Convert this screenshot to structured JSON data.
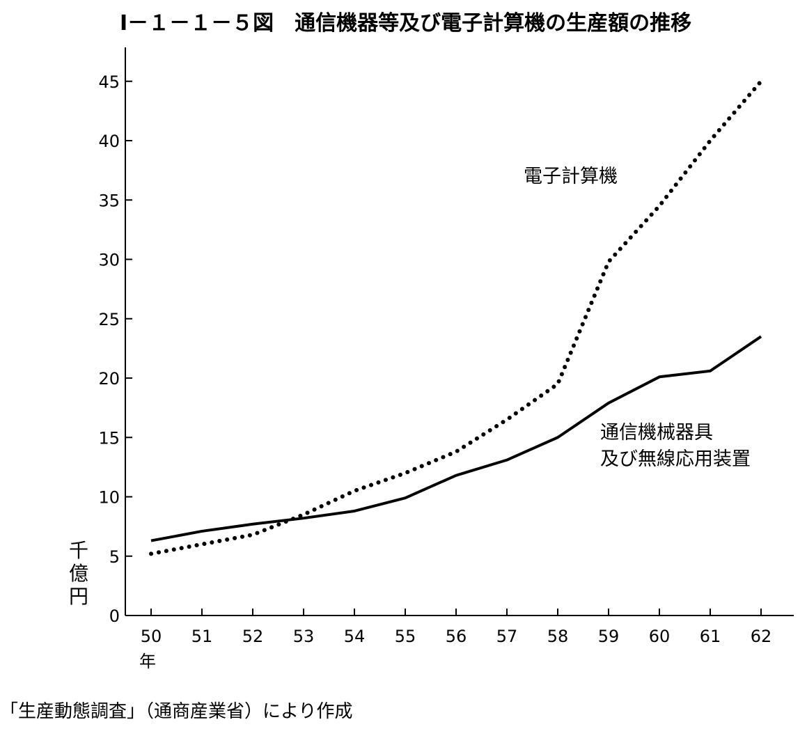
{
  "chart_data": {
    "type": "line",
    "title": "Ⅰ－１－１－５図　通信機器等及び電子計算機の生産額の推移",
    "ylabel": "千億円",
    "x": [
      "50",
      "51",
      "52",
      "53",
      "54",
      "55",
      "56",
      "57",
      "58",
      "59",
      "60",
      "61",
      "62"
    ],
    "x_unit": "年",
    "ylim": [
      0,
      45
    ],
    "yticks": [
      0,
      5,
      10,
      15,
      20,
      25,
      30,
      35,
      40,
      45
    ],
    "grid": false,
    "series": [
      {
        "name": "電子計算機",
        "style": "dotted",
        "values": [
          5.2,
          6.0,
          6.8,
          8.5,
          10.5,
          12.0,
          13.8,
          16.5,
          19.5,
          29.8,
          34.5,
          40.0,
          45.0
        ]
      },
      {
        "name_lines": [
          "通信機械器具",
          "及び無線応用装置"
        ],
        "style": "solid",
        "values": [
          6.3,
          7.1,
          7.7,
          8.2,
          8.8,
          9.9,
          11.8,
          13.1,
          15.0,
          17.9,
          20.1,
          20.6,
          23.5
        ]
      }
    ]
  },
  "source": "「生産動態調査」（通商産業省）により作成",
  "colors": {
    "line": "#000000",
    "background": "#ffffff"
  }
}
